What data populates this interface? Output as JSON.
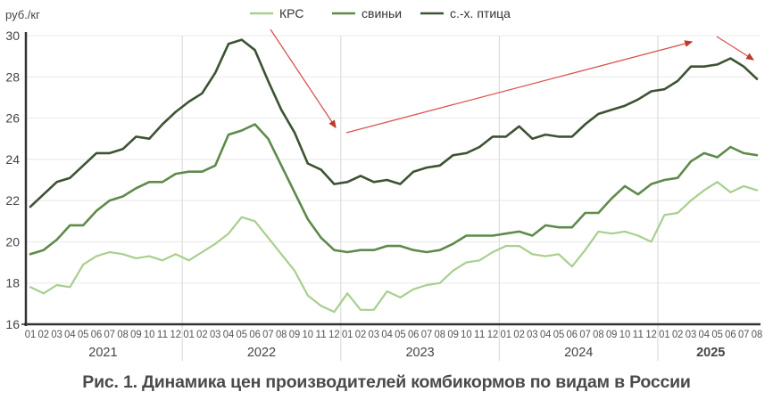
{
  "caption": "Рис. 1. Динамика цен производителей комбикормов по видам в России",
  "colors": {
    "krs": "#a8cf8e",
    "pigs": "#5e8a4c",
    "poultry": "#3d5234",
    "arrow": "#d9534f",
    "grid": "#e8e8e8",
    "axis": "#333333",
    "text": "#444444"
  },
  "chart_data": {
    "type": "line",
    "title": "Рис. 1. Динамика цен производителей комбикормов по видам в России",
    "xlabel": "",
    "ylabel": "руб./кг",
    "ylim": [
      16,
      30
    ],
    "yticks": [
      16,
      18,
      20,
      22,
      24,
      26,
      28,
      30
    ],
    "grid": true,
    "legend_position": "top",
    "years": [
      "2021",
      "2022",
      "2023",
      "2024",
      "2025"
    ],
    "x": [
      "2021-01",
      "2021-02",
      "2021-03",
      "2021-04",
      "2021-05",
      "2021-06",
      "2021-07",
      "2021-08",
      "2021-09",
      "2021-10",
      "2021-11",
      "2021-12",
      "2022-01",
      "2022-02",
      "2022-03",
      "2022-04",
      "2022-05",
      "2022-06",
      "2022-07",
      "2022-08",
      "2022-09",
      "2022-10",
      "2022-11",
      "2022-12",
      "2023-01",
      "2023-02",
      "2023-03",
      "2023-04",
      "2023-05",
      "2023-06",
      "2023-07",
      "2023-08",
      "2023-09",
      "2023-10",
      "2023-11",
      "2023-12",
      "2024-01",
      "2024-02",
      "2024-03",
      "2024-04",
      "2024-05",
      "2024-06",
      "2024-07",
      "2024-08",
      "2024-09",
      "2024-10",
      "2024-11",
      "2024-12",
      "2025-01",
      "2025-02",
      "2025-03",
      "2025-04",
      "2025-05",
      "2025-06",
      "2025-07",
      "2025-08"
    ],
    "month_labels": [
      "01",
      "02",
      "03",
      "04",
      "05",
      "06",
      "07",
      "08",
      "09",
      "10",
      "11",
      "12"
    ],
    "series": [
      {
        "name": "КРС",
        "key": "krs",
        "values": [
          17.8,
          17.5,
          17.9,
          17.8,
          18.9,
          19.3,
          19.5,
          19.4,
          19.2,
          19.3,
          19.1,
          19.4,
          19.1,
          19.5,
          19.9,
          20.4,
          21.2,
          21.0,
          20.2,
          19.4,
          18.6,
          17.4,
          16.9,
          16.6,
          17.5,
          16.7,
          16.7,
          17.6,
          17.3,
          17.7,
          17.9,
          18.0,
          18.6,
          19.0,
          19.1,
          19.5,
          19.8,
          19.8,
          19.4,
          19.3,
          19.4,
          18.8,
          19.6,
          20.5,
          20.4,
          20.5,
          20.3,
          20.0,
          21.3,
          21.4,
          22.0,
          22.5,
          22.9,
          22.4,
          22.7,
          22.5
        ]
      },
      {
        "name": "свиньи",
        "key": "pigs",
        "values": [
          19.4,
          19.6,
          20.1,
          20.8,
          20.8,
          21.5,
          22.0,
          22.2,
          22.6,
          22.9,
          22.9,
          23.3,
          23.4,
          23.4,
          23.7,
          25.2,
          25.4,
          25.7,
          25.0,
          23.7,
          22.4,
          21.1,
          20.2,
          19.6,
          19.5,
          19.6,
          19.6,
          19.8,
          19.8,
          19.6,
          19.5,
          19.6,
          19.9,
          20.3,
          20.3,
          20.3,
          20.4,
          20.5,
          20.3,
          20.8,
          20.7,
          20.7,
          21.4,
          21.4,
          22.1,
          22.7,
          22.3,
          22.8,
          23.0,
          23.1,
          23.9,
          24.3,
          24.1,
          24.6,
          24.3,
          24.2
        ]
      },
      {
        "name": "с.-х. птица",
        "key": "poultry",
        "values": [
          21.7,
          22.3,
          22.9,
          23.1,
          23.7,
          24.3,
          24.3,
          24.5,
          25.1,
          25.0,
          25.7,
          26.3,
          26.8,
          27.2,
          28.2,
          29.6,
          29.8,
          29.3,
          27.8,
          26.4,
          25.3,
          23.8,
          23.5,
          22.8,
          22.9,
          23.2,
          22.9,
          23.0,
          22.8,
          23.4,
          23.6,
          23.7,
          24.2,
          24.3,
          24.6,
          25.1,
          25.1,
          25.6,
          25.0,
          25.2,
          25.1,
          25.1,
          25.7,
          26.2,
          26.4,
          26.6,
          26.9,
          27.3,
          27.4,
          27.8,
          28.5,
          28.5,
          28.6,
          28.9,
          28.5,
          27.9
        ]
      }
    ],
    "annotations": [
      {
        "type": "arrow",
        "from": [
          303,
          33
        ],
        "to": [
          376,
          143
        ],
        "meaning": "decline 2022"
      },
      {
        "type": "arrow",
        "from": [
          388,
          149
        ],
        "to": [
          775,
          47
        ],
        "meaning": "growth 2023-2025"
      },
      {
        "type": "arrow",
        "from": [
          803,
          41
        ],
        "to": [
          844,
          67
        ],
        "meaning": "decline mid-2025"
      }
    ]
  }
}
